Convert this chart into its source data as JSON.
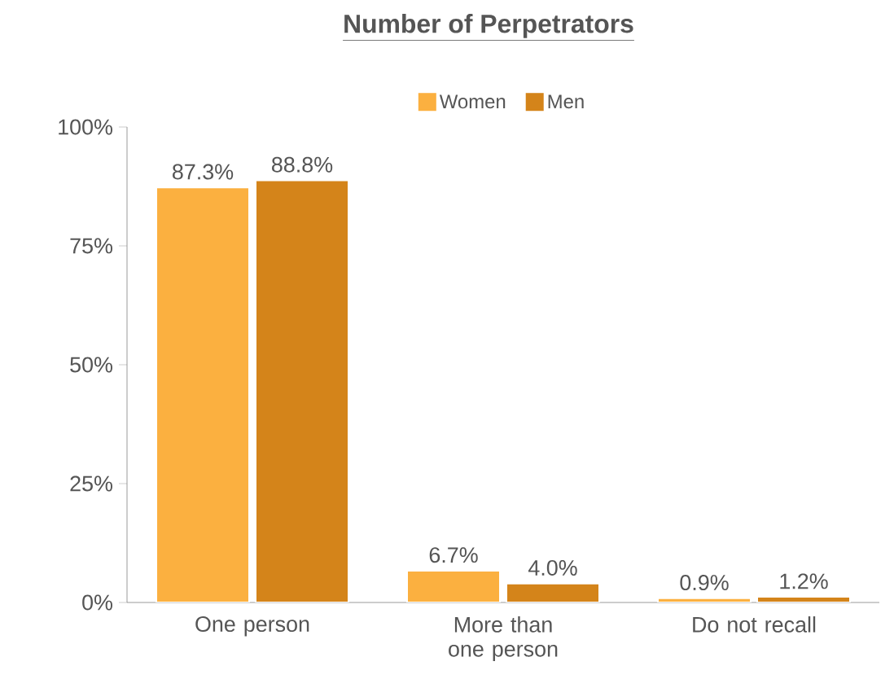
{
  "chart_data": {
    "type": "bar",
    "title": "Number of Perpetrators",
    "categories": [
      "One person",
      "More than one person",
      "Do not recall"
    ],
    "series": [
      {
        "name": "Women",
        "color": "#fbb040",
        "values": [
          87.3,
          6.7,
          0.9
        ],
        "value_labels": [
          "87.3%",
          "6.7%",
          "0.9%"
        ]
      },
      {
        "name": "Men",
        "color": "#d4841a",
        "values": [
          88.8,
          4.0,
          1.2
        ],
        "value_labels": [
          "88.8%",
          "4.0%",
          "1.2%"
        ]
      }
    ],
    "ylim": [
      0,
      100
    ],
    "yticks": [
      {
        "value": 0,
        "label": "0%"
      },
      {
        "value": 25,
        "label": "25%"
      },
      {
        "value": 50,
        "label": "50%"
      },
      {
        "value": 75,
        "label": "75%"
      },
      {
        "value": 100,
        "label": "100%"
      }
    ],
    "grid": false,
    "legend": "top"
  }
}
